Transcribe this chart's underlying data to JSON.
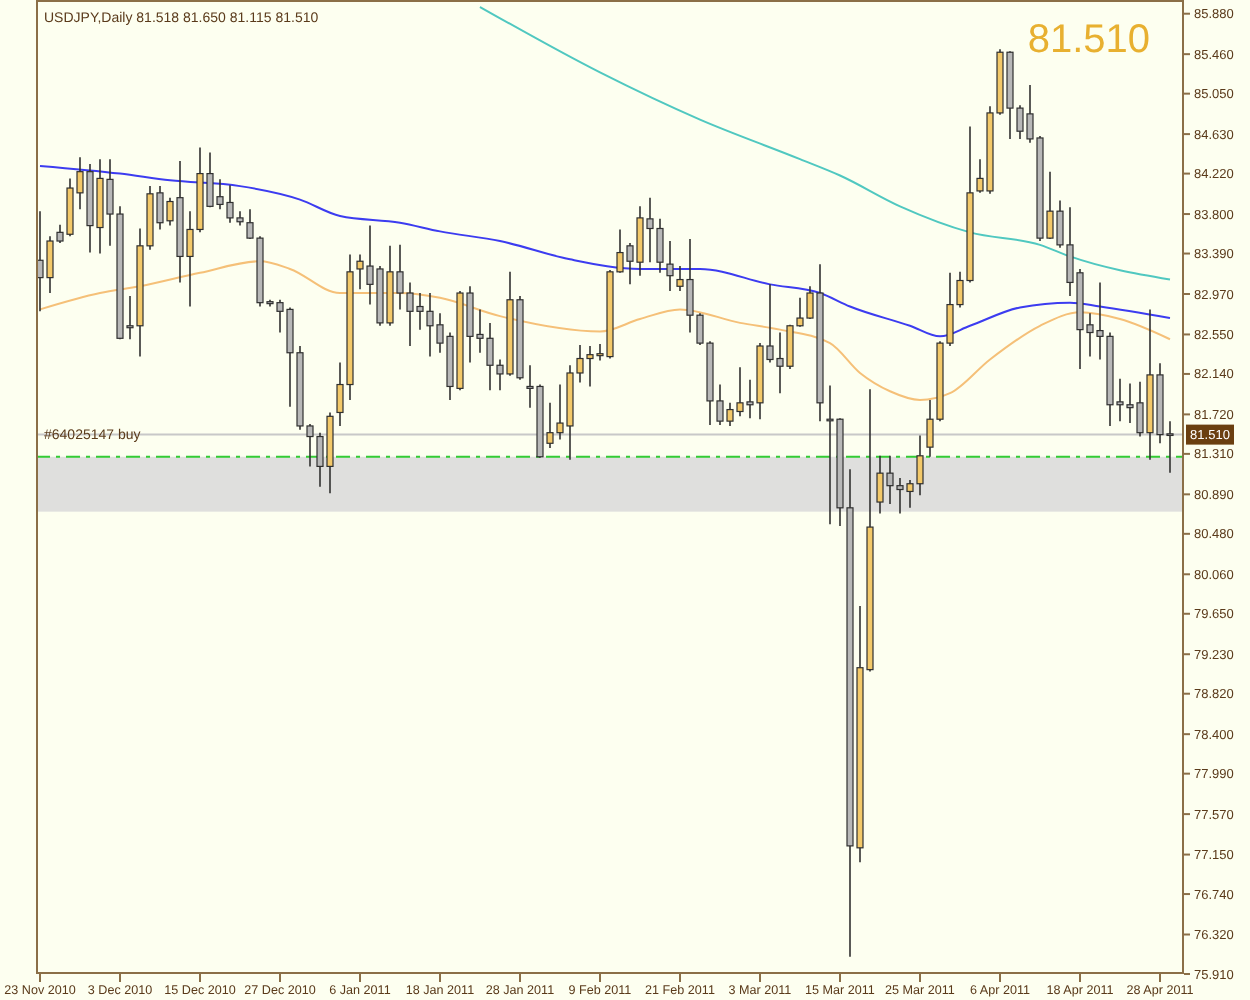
{
  "chart_data": {
    "type": "candlestick",
    "title": "USDJPY,Daily 81.518 81.650 81.115 81.510",
    "categories": [
      "23 Nov 2010",
      null,
      null,
      null,
      null,
      null,
      null,
      null,
      "3 Dec 2010",
      null,
      null,
      null,
      null,
      null,
      null,
      null,
      "15 Dec 2010",
      null,
      null,
      null,
      null,
      null,
      null,
      null,
      "27 Dec 2010",
      null,
      null,
      null,
      null,
      null,
      null,
      null,
      "6 Jan 2011",
      null,
      null,
      null,
      null,
      null,
      null,
      null,
      "18 Jan 2011",
      null,
      null,
      null,
      null,
      null,
      null,
      null,
      "28 Jan 2011",
      null,
      null,
      null,
      null,
      null,
      null,
      null,
      "9 Feb 2011",
      null,
      null,
      null,
      null,
      null,
      null,
      null,
      "21 Feb 2011",
      null,
      null,
      null,
      null,
      null,
      null,
      null,
      "3 Mar 2011",
      null,
      null,
      null,
      null,
      null,
      null,
      null,
      "15 Mar 2011",
      null,
      null,
      null,
      null,
      null,
      null,
      null,
      "25 Mar 2011",
      null,
      null,
      null,
      null,
      null,
      null,
      null,
      "6 Apr 2011",
      null,
      null,
      null,
      null,
      null,
      null,
      null,
      "18 Apr 2011",
      null,
      null,
      null,
      null,
      null,
      null,
      null,
      "28 Apr 2011",
      null
    ],
    "ohlc": [
      [
        83.32,
        83.83,
        82.79,
        83.14
      ],
      [
        83.14,
        83.57,
        82.98,
        83.52
      ],
      [
        83.61,
        83.69,
        83.5,
        83.52
      ],
      [
        83.59,
        84.17,
        83.57,
        84.07
      ],
      [
        84.02,
        84.39,
        83.85,
        84.24
      ],
      [
        84.24,
        84.32,
        83.4,
        83.68
      ],
      [
        83.66,
        84.37,
        83.39,
        84.17
      ],
      [
        84.16,
        84.37,
        83.47,
        83.8
      ],
      [
        83.8,
        83.88,
        82.5,
        82.51
      ],
      [
        82.64,
        82.95,
        82.5,
        82.62
      ],
      [
        82.64,
        83.65,
        82.32,
        83.47
      ],
      [
        83.47,
        84.09,
        83.43,
        84.01
      ],
      [
        84.02,
        84.09,
        83.64,
        83.71
      ],
      [
        83.73,
        83.97,
        83.68,
        83.93
      ],
      [
        83.97,
        84.35,
        83.09,
        83.36
      ],
      [
        83.36,
        83.83,
        82.84,
        83.64
      ],
      [
        83.64,
        84.49,
        83.61,
        84.22
      ],
      [
        84.22,
        84.44,
        83.87,
        83.88
      ],
      [
        83.98,
        84.16,
        83.85,
        83.9
      ],
      [
        83.92,
        84.1,
        83.71,
        83.76
      ],
      [
        83.76,
        83.83,
        83.68,
        83.72
      ],
      [
        83.71,
        83.85,
        83.54,
        83.55
      ],
      [
        83.55,
        83.57,
        82.84,
        82.88
      ],
      [
        82.89,
        82.91,
        82.84,
        82.87
      ],
      [
        82.88,
        82.91,
        82.57,
        82.79
      ],
      [
        82.81,
        82.83,
        81.8,
        82.36
      ],
      [
        82.36,
        82.43,
        81.56,
        81.6
      ],
      [
        81.6,
        81.62,
        81.18,
        81.49
      ],
      [
        81.49,
        81.53,
        80.97,
        81.18
      ],
      [
        81.18,
        81.74,
        80.9,
        81.7
      ],
      [
        81.74,
        82.26,
        81.6,
        82.03
      ],
      [
        82.03,
        83.38,
        81.87,
        83.2
      ],
      [
        83.23,
        83.38,
        83.02,
        83.31
      ],
      [
        83.26,
        83.68,
        82.86,
        83.07
      ],
      [
        83.23,
        83.26,
        82.64,
        82.67
      ],
      [
        82.67,
        83.47,
        82.64,
        83.2
      ],
      [
        83.2,
        83.48,
        82.81,
        82.98
      ],
      [
        82.98,
        83.09,
        82.43,
        82.79
      ],
      [
        82.84,
        82.98,
        82.6,
        82.79
      ],
      [
        82.79,
        82.98,
        82.32,
        82.64
      ],
      [
        82.65,
        82.77,
        82.36,
        82.46
      ],
      [
        82.53,
        82.57,
        81.87,
        82.01
      ],
      [
        81.99,
        83.0,
        81.97,
        82.98
      ],
      [
        82.98,
        83.05,
        82.26,
        82.53
      ],
      [
        82.55,
        82.81,
        82.36,
        82.51
      ],
      [
        82.51,
        82.67,
        81.97,
        82.23
      ],
      [
        82.23,
        82.29,
        81.97,
        82.14
      ],
      [
        82.14,
        83.2,
        82.12,
        82.91
      ],
      [
        82.91,
        82.95,
        82.08,
        82.1
      ],
      [
        82.01,
        82.23,
        81.79,
        81.99
      ],
      [
        82.01,
        82.03,
        81.27,
        81.28
      ],
      [
        81.42,
        81.84,
        81.37,
        81.53
      ],
      [
        81.53,
        82.03,
        81.46,
        81.63
      ],
      [
        81.6,
        82.23,
        81.25,
        82.15
      ],
      [
        82.15,
        82.44,
        82.05,
        82.3
      ],
      [
        82.3,
        82.43,
        82.01,
        82.34
      ],
      [
        82.33,
        82.45,
        82.28,
        82.35
      ],
      [
        82.32,
        83.22,
        82.3,
        83.2
      ],
      [
        83.2,
        83.64,
        83.19,
        83.4
      ],
      [
        83.47,
        83.5,
        83.07,
        83.31
      ],
      [
        83.3,
        83.88,
        83.16,
        83.76
      ],
      [
        83.75,
        83.97,
        83.3,
        83.65
      ],
      [
        83.65,
        83.75,
        83.19,
        83.3
      ],
      [
        83.28,
        83.52,
        83.0,
        83.16
      ],
      [
        83.05,
        83.26,
        83.0,
        83.12
      ],
      [
        83.12,
        83.54,
        82.57,
        82.75
      ],
      [
        82.75,
        82.77,
        82.44,
        82.46
      ],
      [
        82.46,
        82.48,
        81.61,
        81.86
      ],
      [
        81.86,
        82.03,
        81.61,
        81.65
      ],
      [
        81.65,
        81.84,
        81.6,
        81.77
      ],
      [
        81.75,
        82.21,
        81.7,
        81.84
      ],
      [
        81.85,
        82.08,
        81.68,
        81.82
      ],
      [
        81.84,
        82.46,
        81.67,
        82.43
      ],
      [
        82.43,
        83.07,
        82.26,
        82.29
      ],
      [
        82.3,
        82.57,
        81.94,
        82.22
      ],
      [
        82.22,
        82.65,
        82.19,
        82.64
      ],
      [
        82.64,
        82.93,
        82.63,
        82.72
      ],
      [
        82.72,
        83.05,
        82.71,
        82.98
      ],
      [
        82.98,
        83.28,
        81.65,
        81.84
      ],
      [
        81.67,
        82.02,
        80.58,
        81.66
      ],
      [
        81.67,
        81.68,
        80.56,
        80.75
      ],
      [
        80.75,
        81.15,
        76.09,
        77.24
      ],
      [
        77.22,
        79.73,
        77.07,
        79.09
      ],
      [
        79.07,
        81.98,
        79.05,
        80.55
      ],
      [
        80.81,
        81.29,
        80.69,
        81.11
      ],
      [
        81.11,
        81.29,
        80.79,
        80.98
      ],
      [
        80.98,
        81.06,
        80.69,
        80.94
      ],
      [
        80.92,
        81.04,
        80.75,
        81.0
      ],
      [
        81.0,
        81.5,
        80.88,
        81.29
      ],
      [
        81.38,
        81.87,
        81.28,
        81.67
      ],
      [
        81.67,
        82.48,
        81.65,
        82.46
      ],
      [
        82.46,
        83.19,
        82.43,
        82.86
      ],
      [
        82.86,
        83.2,
        82.83,
        83.11
      ],
      [
        83.11,
        84.71,
        83.09,
        84.02
      ],
      [
        84.04,
        84.37,
        84.02,
        84.17
      ],
      [
        84.04,
        84.92,
        84.01,
        84.85
      ],
      [
        84.85,
        85.51,
        84.83,
        85.48
      ],
      [
        85.48,
        85.49,
        84.58,
        84.9
      ],
      [
        84.9,
        84.93,
        84.58,
        84.66
      ],
      [
        84.84,
        85.14,
        84.54,
        84.58
      ],
      [
        84.59,
        84.61,
        83.52,
        83.55
      ],
      [
        83.55,
        84.24,
        83.54,
        83.83
      ],
      [
        83.83,
        83.94,
        83.45,
        83.48
      ],
      [
        83.48,
        83.87,
        82.95,
        83.09
      ],
      [
        83.19,
        83.23,
        82.19,
        82.6
      ],
      [
        82.65,
        82.77,
        82.32,
        82.57
      ],
      [
        82.59,
        83.09,
        82.29,
        82.53
      ],
      [
        82.53,
        82.57,
        81.6,
        81.82
      ],
      [
        81.85,
        82.09,
        81.65,
        81.82
      ],
      [
        81.82,
        82.04,
        81.63,
        81.79
      ],
      [
        81.84,
        82.06,
        81.49,
        81.53
      ],
      [
        81.53,
        82.81,
        81.25,
        82.13
      ],
      [
        82.13,
        82.25,
        81.42,
        81.51
      ],
      [
        81.518,
        81.65,
        81.115,
        81.51
      ]
    ],
    "series": [
      {
        "type": "line",
        "color": "#3c3cf0",
        "values": [
          84.3,
          null,
          null,
          null,
          null,
          null,
          null,
          null,
          84.22,
          null,
          null,
          null,
          null,
          84.15,
          null,
          null,
          null,
          null,
          null,
          null,
          84.09,
          null,
          null,
          null,
          null,
          null,
          83.95,
          null,
          null,
          null,
          83.78,
          null,
          null,
          null,
          null,
          null,
          83.71,
          null,
          null,
          null,
          83.62,
          null,
          null,
          null,
          null,
          null,
          83.52,
          null,
          null,
          null,
          null,
          null,
          null,
          83.33,
          null,
          null,
          null,
          null,
          null,
          null,
          83.23,
          null,
          null,
          null,
          null,
          null,
          83.23,
          null,
          null,
          null,
          null,
          null,
          null,
          83.07,
          null,
          null,
          null,
          null,
          82.98,
          null,
          null,
          82.84,
          null,
          null,
          null,
          null,
          null,
          82.64,
          null,
          null,
          82.53,
          null,
          null,
          82.64,
          null,
          null,
          null,
          null,
          82.83,
          null,
          null,
          null,
          null,
          82.88,
          null,
          null,
          82.84,
          null,
          null,
          null,
          null,
          null,
          null,
          82.72
        ]
      },
      {
        "type": "line",
        "color": "#f5c078",
        "values": [
          82.81,
          null,
          null,
          null,
          null,
          null,
          82.98,
          null,
          null,
          null,
          83.05,
          null,
          null,
          null,
          null,
          null,
          83.19,
          null,
          null,
          null,
          null,
          null,
          83.31,
          null,
          null,
          83.23,
          null,
          null,
          null,
          null,
          82.98,
          null,
          null,
          null,
          null,
          null,
          82.98,
          null,
          null,
          null,
          82.93,
          null,
          null,
          null,
          null,
          null,
          82.74,
          null,
          null,
          null,
          null,
          null,
          null,
          null,
          null,
          null,
          82.58,
          null,
          null,
          null,
          82.71,
          null,
          null,
          null,
          82.81,
          null,
          null,
          null,
          null,
          null,
          82.67,
          null,
          null,
          null,
          82.6,
          null,
          null,
          null,
          null,
          82.46,
          null,
          null,
          82.15,
          null,
          null,
          81.96,
          null,
          null,
          81.87,
          null,
          null,
          81.94,
          null,
          null,
          null,
          82.29,
          null,
          null,
          null,
          null,
          82.64,
          null,
          null,
          null,
          82.78,
          null,
          null,
          null,
          82.71,
          null,
          null,
          null,
          null,
          82.5
        ]
      },
      {
        "type": "line",
        "color": "#50c8c0",
        "values": [
          null,
          null,
          null,
          null,
          null,
          null,
          null,
          null,
          null,
          null,
          null,
          null,
          null,
          null,
          null,
          null,
          null,
          null,
          null,
          null,
          null,
          null,
          null,
          null,
          null,
          null,
          null,
          null,
          null,
          null,
          null,
          null,
          null,
          null,
          null,
          null,
          null,
          null,
          null,
          null,
          null,
          null,
          null,
          null,
          85.95,
          null,
          null,
          null,
          null,
          null,
          null,
          null,
          null,
          null,
          null,
          null,
          85.27,
          null,
          null,
          null,
          null,
          null,
          null,
          null,
          null,
          null,
          84.78,
          null,
          null,
          null,
          null,
          null,
          null,
          null,
          null,
          null,
          84.37,
          null,
          null,
          null,
          84.2,
          null,
          null,
          null,
          null,
          null,
          83.88,
          null,
          null,
          null,
          null,
          null,
          null,
          83.61,
          null,
          null,
          null,
          null,
          null,
          null,
          83.48,
          null,
          null,
          83.36,
          null,
          null,
          null,
          null,
          null,
          null,
          null,
          null,
          null,
          83.12
        ]
      }
    ],
    "ylim": [
      75.91,
      85.96
    ],
    "yticks": [
      {
        "value": 85.88,
        "label": "85.880"
      },
      {
        "value": 85.46,
        "label": "85.460"
      },
      {
        "value": 85.05,
        "label": "85.050"
      },
      {
        "value": 84.63,
        "label": "84.630"
      },
      {
        "value": 84.22,
        "label": "84.220"
      },
      {
        "value": 83.8,
        "label": "83.800"
      },
      {
        "value": 83.39,
        "label": "83.390"
      },
      {
        "value": 82.97,
        "label": "82.970"
      },
      {
        "value": 82.55,
        "label": "82.550"
      },
      {
        "value": 82.14,
        "label": "82.140"
      },
      {
        "value": 81.72,
        "label": "81.720"
      },
      {
        "value": 81.31,
        "label": "81.310"
      },
      {
        "value": 80.89,
        "label": "80.890"
      },
      {
        "value": 80.48,
        "label": "80.480"
      },
      {
        "value": 80.06,
        "label": "80.060"
      },
      {
        "value": 79.65,
        "label": "79.650"
      },
      {
        "value": 79.23,
        "label": "79.230"
      },
      {
        "value": 78.82,
        "label": "78.820"
      },
      {
        "value": 78.4,
        "label": "78.400"
      },
      {
        "value": 77.99,
        "label": "77.990"
      },
      {
        "value": 77.57,
        "label": "77.570"
      },
      {
        "value": 77.15,
        "label": "77.150"
      },
      {
        "value": 76.74,
        "label": "76.740"
      },
      {
        "value": 76.32,
        "label": "76.320"
      },
      {
        "value": 75.91,
        "label": "75.910"
      }
    ],
    "bands": [
      {
        "axis": "y",
        "from": 80.71,
        "to": 81.28,
        "color": "#d9d9d9"
      }
    ],
    "ref_lines": [
      {
        "axis": "y",
        "value": 81.28,
        "label": "#64025147 buy",
        "color": "#33cc33",
        "line_style": "dashed"
      },
      {
        "axis": "y",
        "value": 81.51,
        "label": "81.510",
        "color": "#c8c8c8",
        "line_style": "solid"
      }
    ],
    "annotations": [
      "81.510"
    ]
  }
}
